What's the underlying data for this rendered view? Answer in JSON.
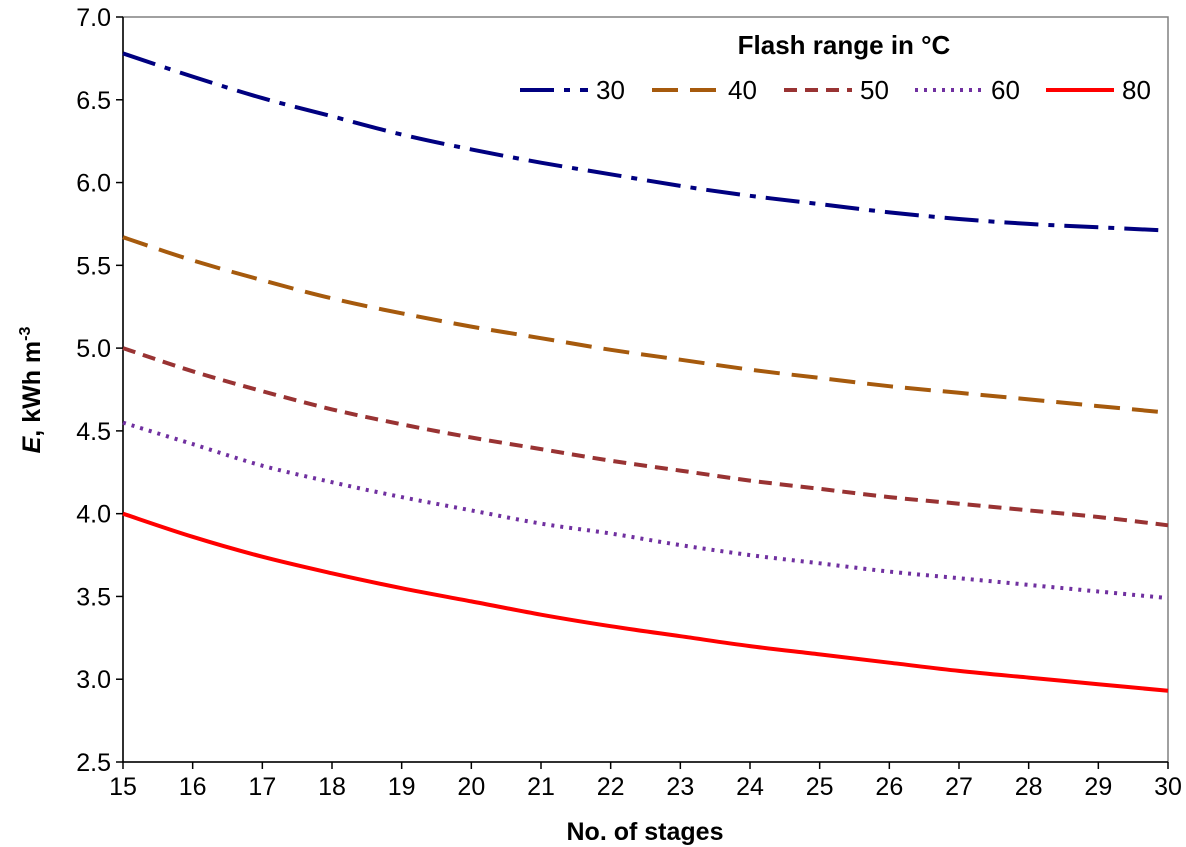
{
  "chart_data": {
    "type": "line",
    "xlabel": "No. of stages",
    "ylabel_main": "E",
    "ylabel_rest": ", kWh m",
    "ylabel_sup": "-3",
    "xlim": [
      15,
      30
    ],
    "ylim": [
      2.5,
      7.0
    ],
    "x_ticks": [
      "15",
      "16",
      "17",
      "18",
      "19",
      "20",
      "21",
      "22",
      "23",
      "24",
      "25",
      "26",
      "27",
      "28",
      "29",
      "30"
    ],
    "y_ticks": [
      "2.5",
      "3.0",
      "3.5",
      "4.0",
      "4.5",
      "5.0",
      "5.5",
      "6.0",
      "6.5",
      "7.0"
    ],
    "grid": false,
    "legend": {
      "title": "Flash range in °C",
      "position": "top-right"
    },
    "x": [
      15,
      16,
      17,
      18,
      19,
      20,
      21,
      22,
      23,
      24,
      25,
      26,
      27,
      28,
      29,
      30
    ],
    "series": [
      {
        "name": "30",
        "color": "#000080",
        "dash": "dashdot",
        "values": [
          6.78,
          6.64,
          6.51,
          6.4,
          6.29,
          6.2,
          6.12,
          6.05,
          5.98,
          5.92,
          5.87,
          5.82,
          5.78,
          5.75,
          5.73,
          5.71
        ]
      },
      {
        "name": "40",
        "color": "#A65A0D",
        "dash": "longdash",
        "values": [
          5.67,
          5.53,
          5.41,
          5.3,
          5.21,
          5.13,
          5.06,
          4.99,
          4.93,
          4.87,
          4.82,
          4.77,
          4.73,
          4.69,
          4.65,
          4.61
        ]
      },
      {
        "name": "50",
        "color": "#993333",
        "dash": "shortdash",
        "values": [
          5.0,
          4.86,
          4.74,
          4.63,
          4.54,
          4.46,
          4.39,
          4.32,
          4.26,
          4.2,
          4.15,
          4.1,
          4.06,
          4.02,
          3.98,
          3.93
        ]
      },
      {
        "name": "60",
        "color": "#7030A0",
        "dash": "dot",
        "values": [
          4.55,
          4.42,
          4.29,
          4.19,
          4.1,
          4.02,
          3.94,
          3.88,
          3.81,
          3.75,
          3.7,
          3.65,
          3.61,
          3.57,
          3.53,
          3.49
        ]
      },
      {
        "name": "80",
        "color": "#FF0000",
        "dash": "solid",
        "values": [
          4.0,
          3.86,
          3.74,
          3.64,
          3.55,
          3.47,
          3.39,
          3.32,
          3.26,
          3.2,
          3.15,
          3.1,
          3.05,
          3.01,
          2.97,
          2.93
        ]
      }
    ]
  }
}
